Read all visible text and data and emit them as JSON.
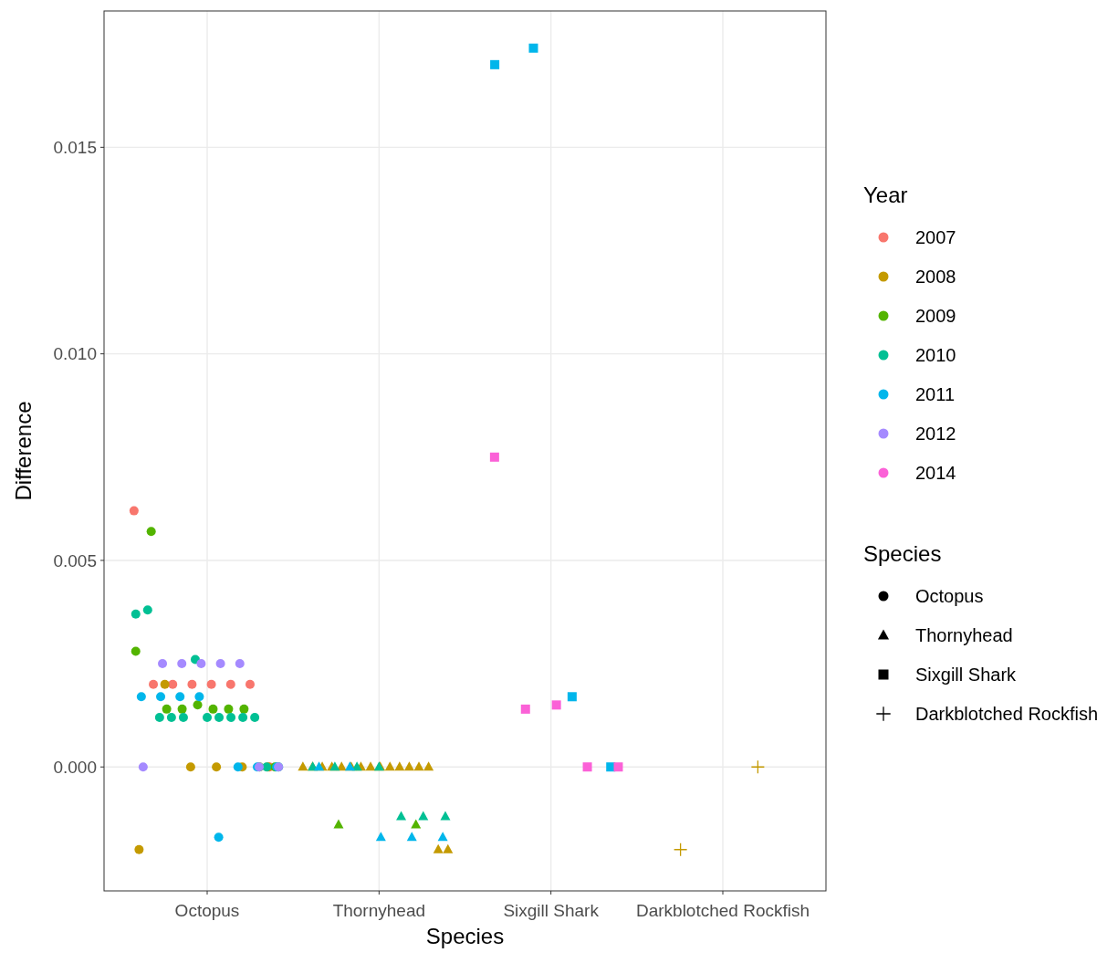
{
  "chart_data": {
    "type": "scatter",
    "xlabel": "Species",
    "ylabel": "Difference",
    "legend_title": "Year",
    "annotations": [
      "Species"
    ],
    "categories": [
      "Octopus",
      "Thornyhead",
      "Sixgill Shark",
      "Darkblotched Rockfish"
    ],
    "marker": [
      "circle",
      "triangle",
      "square",
      "cross"
    ],
    "ylim": [
      -0.003,
      0.0183
    ],
    "yticks": [
      {
        "value": 0,
        "label": "0.000"
      },
      {
        "value": 0.005,
        "label": "0.005"
      },
      {
        "value": 0.01,
        "label": "0.010"
      },
      {
        "value": 0.015,
        "label": "0.015"
      }
    ],
    "grid": true,
    "legend": "right",
    "series": [
      {
        "name": "2007",
        "color": "#f8766d",
        "x": [
          "Octopus",
          "Octopus",
          "Octopus",
          "Octopus",
          "Octopus",
          "Octopus",
          "Octopus",
          "Octopus"
        ],
        "values": [
          0.0062,
          0.002,
          0.002,
          0.002,
          0.002,
          0.002,
          0.002,
          0
        ]
      },
      {
        "name": "2008",
        "color": "#c49a00",
        "x": [
          "Octopus",
          "Octopus",
          "Octopus",
          "Octopus",
          "Octopus",
          "Octopus",
          "Thornyhead",
          "Thornyhead",
          "Thornyhead",
          "Thornyhead",
          "Thornyhead",
          "Thornyhead",
          "Thornyhead",
          "Thornyhead",
          "Thornyhead",
          "Thornyhead",
          "Thornyhead",
          "Thornyhead",
          "Thornyhead",
          "Thornyhead",
          "Thornyhead",
          "Thornyhead",
          "Darkblotched Rockfish",
          "Darkblotched Rockfish"
        ],
        "values": [
          -0.002,
          0.002,
          0,
          0,
          0,
          0,
          0,
          0,
          0,
          0,
          0,
          0,
          0,
          0,
          0,
          0,
          0,
          0,
          0,
          0,
          -0.002,
          -0.002,
          -0.002,
          0
        ]
      },
      {
        "name": "2009",
        "color": "#53b400",
        "x": [
          "Octopus",
          "Octopus",
          "Octopus",
          "Octopus",
          "Octopus",
          "Octopus",
          "Octopus",
          "Octopus",
          "Octopus",
          "Octopus",
          "Thornyhead",
          "Thornyhead"
        ],
        "values": [
          0.0028,
          0.0057,
          0.0014,
          0.0014,
          0.0015,
          0.0014,
          0.0014,
          0.0014,
          0,
          0,
          -0.0014,
          -0.0014
        ]
      },
      {
        "name": "2010",
        "color": "#00c094",
        "x": [
          "Octopus",
          "Octopus",
          "Octopus",
          "Octopus",
          "Octopus",
          "Octopus",
          "Octopus",
          "Octopus",
          "Octopus",
          "Octopus",
          "Octopus",
          "Octopus",
          "Octopus",
          "Thornyhead",
          "Thornyhead",
          "Thornyhead",
          "Thornyhead",
          "Thornyhead",
          "Thornyhead",
          "Thornyhead"
        ],
        "values": [
          0.0037,
          0.0038,
          0.0012,
          0.0012,
          0.0012,
          0.0026,
          0.0012,
          0.0012,
          0.0012,
          0.0012,
          0.0012,
          0,
          0,
          0,
          0,
          0,
          0,
          -0.0012,
          -0.0012,
          -0.0012
        ]
      },
      {
        "name": "2011",
        "color": "#00b6eb",
        "x": [
          "Octopus",
          "Octopus",
          "Octopus",
          "Octopus",
          "Octopus",
          "Octopus",
          "Octopus",
          "Octopus",
          "Thornyhead",
          "Thornyhead",
          "Thornyhead",
          "Thornyhead",
          "Thornyhead",
          "Sixgill Shark",
          "Sixgill Shark",
          "Sixgill Shark",
          "Sixgill Shark"
        ],
        "values": [
          0.0017,
          0.0017,
          0.0017,
          0.0017,
          -0.0017,
          0,
          0,
          0,
          0,
          0,
          -0.0017,
          -0.0017,
          -0.0017,
          0.017,
          0.0174,
          0.0017,
          0
        ]
      },
      {
        "name": "2012",
        "color": "#a58aff",
        "x": [
          "Octopus",
          "Octopus",
          "Octopus",
          "Octopus",
          "Octopus",
          "Octopus",
          "Octopus",
          "Octopus"
        ],
        "values": [
          0,
          0.0025,
          0.0025,
          0.0025,
          0.0025,
          0.0025,
          0,
          0
        ]
      },
      {
        "name": "2014",
        "color": "#fb61d7",
        "x": [
          "Sixgill Shark",
          "Sixgill Shark",
          "Sixgill Shark",
          "Sixgill Shark",
          "Sixgill Shark"
        ],
        "values": [
          0.0075,
          0.0014,
          0.0015,
          0,
          0
        ]
      }
    ]
  }
}
